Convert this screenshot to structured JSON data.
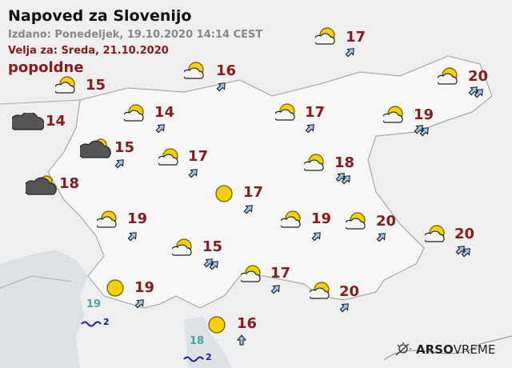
{
  "header": {
    "title": "Napoved za Slovenijo",
    "issued": "Izdano: Ponedeljek, 19.10.2020 14:14 CEST",
    "valid": "Velja za: Sreda, 21.10.2020",
    "period": "popoldne"
  },
  "colors": {
    "temperature": "#8b1a1a",
    "sea_temperature": "#4aa3a3",
    "wave": "#1a1aa0",
    "sun": "#f5d000"
  },
  "stations": [
    {
      "icon": "partly-cloudy-icon",
      "temp": "17",
      "wind": "northeast",
      "arrows": 1
    },
    {
      "icon": "partly-cloudy-icon",
      "temp": "16",
      "wind": "northeast",
      "arrows": 1
    },
    {
      "icon": "partly-cloudy-icon",
      "temp": "15",
      "wind": "",
      "arrows": 0
    },
    {
      "icon": "partly-cloudy-icon",
      "temp": "20",
      "wind": "northeast",
      "arrows": 2
    },
    {
      "icon": "overcast-icon",
      "temp": "14",
      "wind": "",
      "arrows": 0
    },
    {
      "icon": "partly-cloudy-icon",
      "temp": "14",
      "wind": "northeast",
      "arrows": 1
    },
    {
      "icon": "partly-cloudy-icon",
      "temp": "17",
      "wind": "northeast",
      "arrows": 1
    },
    {
      "icon": "partly-cloudy-icon",
      "temp": "19",
      "wind": "northeast",
      "arrows": 2
    },
    {
      "icon": "cloudy-sun-icon",
      "temp": "15",
      "wind": "northeast",
      "arrows": 1
    },
    {
      "icon": "partly-cloudy-icon",
      "temp": "17",
      "wind": "northeast",
      "arrows": 1
    },
    {
      "icon": "partly-cloudy-icon",
      "temp": "18",
      "wind": "northeast",
      "arrows": 2
    },
    {
      "icon": "cloudy-sun-icon",
      "temp": "18",
      "wind": "",
      "arrows": 0
    },
    {
      "icon": "sun-icon",
      "temp": "17",
      "wind": "northeast",
      "arrows": 1
    },
    {
      "icon": "partly-cloudy-icon",
      "temp": "19",
      "wind": "northeast",
      "arrows": 1
    },
    {
      "icon": "partly-cloudy-icon",
      "temp": "19",
      "wind": "northeast",
      "arrows": 1
    },
    {
      "icon": "partly-cloudy-icon",
      "temp": "20",
      "wind": "northeast",
      "arrows": 1
    },
    {
      "icon": "partly-cloudy-icon",
      "temp": "20",
      "wind": "northeast",
      "arrows": 2
    },
    {
      "icon": "partly-cloudy-icon",
      "temp": "15",
      "wind": "northeast",
      "arrows": 2
    },
    {
      "icon": "partly-cloudy-icon",
      "temp": "17",
      "wind": "northeast",
      "arrows": 1
    },
    {
      "icon": "sun-icon",
      "temp": "19",
      "wind": "northeast",
      "arrows": 1
    },
    {
      "icon": "partly-cloudy-icon",
      "temp": "20",
      "wind": "northeast",
      "arrows": 1
    },
    {
      "icon": "sun-icon",
      "temp": "16",
      "wind": "north",
      "arrows": 1
    }
  ],
  "sea": [
    {
      "temp": "19",
      "wave": "2"
    },
    {
      "temp": "18",
      "wave": "2"
    }
  ],
  "logo": {
    "bold": "ARSO",
    "light": "VREME"
  }
}
